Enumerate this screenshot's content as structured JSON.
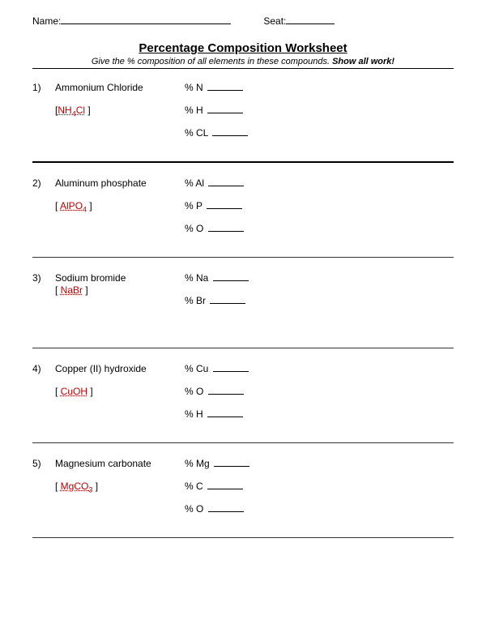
{
  "header": {
    "name_label": "Name:",
    "seat_label": "Seat:"
  },
  "title": "Percentage Composition Worksheet",
  "instructions_prefix": "Give the % composition of all elements in these compounds.  ",
  "instructions_bold": "Show all work!",
  "problems": [
    {
      "num": "1)",
      "name": "Ammonium Chloride",
      "formula_open": "[",
      "formula_html": "NH<sub class='sub'>4</sub>Cl",
      "formula_close": " ]",
      "elements": [
        "% N",
        "% H",
        "% CL"
      ]
    },
    {
      "num": "2)",
      "name": "Aluminum phosphate",
      "formula_open": "[  ",
      "formula_html": "AlPO<sub class='sub'>4</sub>",
      "formula_close": " ]",
      "elements": [
        "% Al",
        "% P",
        "% O"
      ]
    },
    {
      "num": "3)",
      "name": "Sodium bromide",
      "formula_open": "[ ",
      "formula_html": "NaBr",
      "formula_close": " ]",
      "tight": true,
      "elements": [
        "% Na",
        "% Br"
      ]
    },
    {
      "num": "4)",
      "name": "Copper (II) hydroxide",
      "formula_open": "[ ",
      "formula_html": "CuOH",
      "formula_close": " ]",
      "elements": [
        "% Cu",
        "% O",
        "% H"
      ]
    },
    {
      "num": "5)",
      "name": "Magnesium carbonate",
      "formula_open": "[ ",
      "formula_html": "MgCO<sub class='sub'>3</sub>",
      "formula_close": " ]",
      "elements": [
        "% Mg",
        "% C",
        "% O"
      ]
    }
  ]
}
